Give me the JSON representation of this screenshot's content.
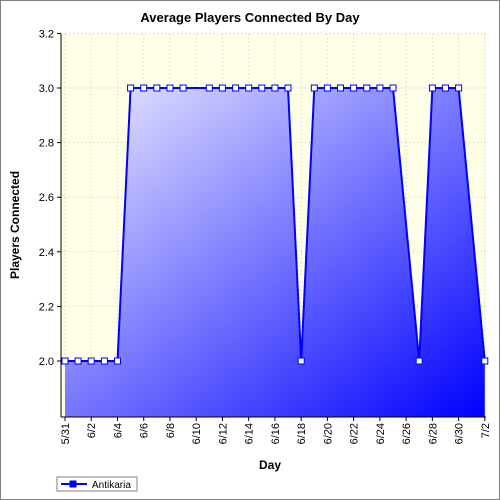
{
  "chart_data": {
    "type": "area",
    "title": "Average Players Connected By Day",
    "xlabel": "Day",
    "ylabel": "Players Connected",
    "ylim": [
      1.8,
      3.2
    ],
    "yticks": [
      "2.0",
      "2.2",
      "2.4",
      "2.6",
      "2.8",
      "3.0",
      "3.2"
    ],
    "ytick_values": [
      2.0,
      2.2,
      2.4,
      2.6,
      2.8,
      3.0,
      3.2
    ],
    "xticks": [
      "5/31",
      "6/2",
      "6/4",
      "6/6",
      "6/8",
      "6/10",
      "6/12",
      "6/14",
      "6/16",
      "6/18",
      "6/20",
      "6/22",
      "6/24",
      "6/26",
      "6/28",
      "6/30",
      "7/2"
    ],
    "grid": true,
    "legend_position": "bottom-left",
    "colors": {
      "plot_background": "#ffffe8",
      "line": "#0000ff",
      "fill_light": "#ececff",
      "fill_dark": "#0000ff",
      "grid": "#c8c8b0"
    },
    "series": [
      {
        "name": "Antikaria",
        "points": [
          {
            "x": "5/31",
            "y": 2.0
          },
          {
            "x": "6/1",
            "y": 2.0
          },
          {
            "x": "6/2",
            "y": 2.0
          },
          {
            "x": "6/3",
            "y": 2.0
          },
          {
            "x": "6/4",
            "y": 2.0
          },
          {
            "x": "6/5",
            "y": 3.0
          },
          {
            "x": "6/6",
            "y": 3.0
          },
          {
            "x": "6/7",
            "y": 3.0
          },
          {
            "x": "6/8",
            "y": 3.0
          },
          {
            "x": "6/9",
            "y": 3.0
          },
          {
            "x": "6/11",
            "y": 3.0
          },
          {
            "x": "6/12",
            "y": 3.0
          },
          {
            "x": "6/13",
            "y": 3.0
          },
          {
            "x": "6/14",
            "y": 3.0
          },
          {
            "x": "6/15",
            "y": 3.0
          },
          {
            "x": "6/16",
            "y": 3.0
          },
          {
            "x": "6/17",
            "y": 3.0
          },
          {
            "x": "6/18",
            "y": 2.0
          },
          {
            "x": "6/19",
            "y": 3.0
          },
          {
            "x": "6/20",
            "y": 3.0
          },
          {
            "x": "6/21",
            "y": 3.0
          },
          {
            "x": "6/22",
            "y": 3.0
          },
          {
            "x": "6/23",
            "y": 3.0
          },
          {
            "x": "6/24",
            "y": 3.0
          },
          {
            "x": "6/25",
            "y": 3.0
          },
          {
            "x": "6/27",
            "y": 2.0
          },
          {
            "x": "6/28",
            "y": 3.0
          },
          {
            "x": "6/29",
            "y": 3.0
          },
          {
            "x": "6/30",
            "y": 3.0
          },
          {
            "x": "7/2",
            "y": 2.0
          }
        ]
      }
    ]
  }
}
